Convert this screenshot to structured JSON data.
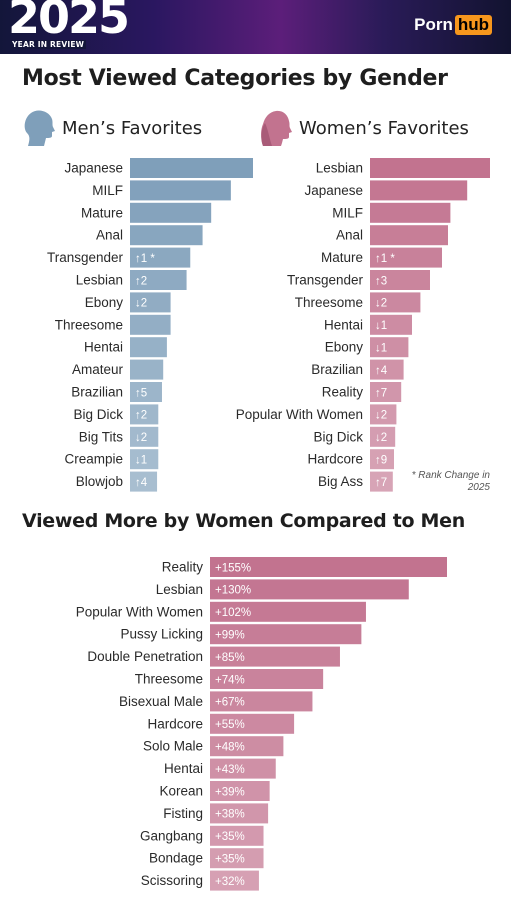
{
  "header": {
    "year": "2025",
    "subtitle": "YEAR IN REVIEW",
    "logo_part1": "Porn",
    "logo_part2": "hub"
  },
  "section1_title": "Most Viewed Categories by Gender",
  "section2_title": "Viewed More by Women Compared to Men",
  "rank_note": "* Rank Change in 2025",
  "colors": {
    "men": "#7f9fba",
    "women": "#c2738f"
  },
  "chart_data": [
    {
      "type": "bar",
      "title": "Men’s Favorites",
      "orientation": "horizontal",
      "categories": [
        "Japanese",
        "MILF",
        "Mature",
        "Anal",
        "Transgender",
        "Lesbian",
        "Ebony",
        "Threesome",
        "Hentai",
        "Amateur",
        "Brazilian",
        "Big Dick",
        "Big Tits",
        "Creampie",
        "Blowjob"
      ],
      "values": [
        100,
        82,
        66,
        59,
        49,
        46,
        33,
        33,
        30,
        27,
        26,
        23,
        23,
        23,
        22
      ],
      "rank_change_labels": [
        "",
        "",
        "",
        "",
        "↑1 *",
        "↑2",
        "↓2",
        "",
        "",
        "",
        "↑5",
        "↑2",
        "↓2",
        "↓1",
        "↑4"
      ]
    },
    {
      "type": "bar",
      "title": "Women’s Favorites",
      "orientation": "horizontal",
      "categories": [
        "Lesbian",
        "Japanese",
        "MILF",
        "Anal",
        "Mature",
        "Transgender",
        "Threesome",
        "Hentai",
        "Ebony",
        "Brazilian",
        "Reality",
        "Popular With Women",
        "Big Dick",
        "Hardcore",
        "Big Ass"
      ],
      "values": [
        100,
        81,
        67,
        65,
        60,
        50,
        42,
        35,
        32,
        28,
        26,
        22,
        21,
        20,
        19
      ],
      "rank_change_labels": [
        "",
        "",
        "",
        "",
        "↑1 *",
        "↑3",
        "↓2",
        "↓1",
        "↓1",
        "↑4",
        "↑7",
        "↓2",
        "↓2",
        "↑9",
        "↑7"
      ]
    },
    {
      "type": "bar",
      "title": "Viewed More by Women Compared to Men",
      "orientation": "horizontal",
      "categories": [
        "Reality",
        "Lesbian",
        "Popular With Women",
        "Pussy Licking",
        "Double Penetration",
        "Threesome",
        "Bisexual Male",
        "Hardcore",
        "Solo Male",
        "Hentai",
        "Korean",
        "Fisting",
        "Gangbang",
        "Bondage",
        "Scissoring"
      ],
      "values": [
        155,
        130,
        102,
        99,
        85,
        74,
        67,
        55,
        48,
        43,
        39,
        38,
        35,
        35,
        32
      ],
      "value_labels": [
        "+155%",
        "+130%",
        "+102%",
        "+99%",
        "+85%",
        "+74%",
        "+67%",
        "+55%",
        "+48%",
        "+43%",
        "+39%",
        "+38%",
        "+35%",
        "+35%",
        "+32%"
      ]
    }
  ]
}
